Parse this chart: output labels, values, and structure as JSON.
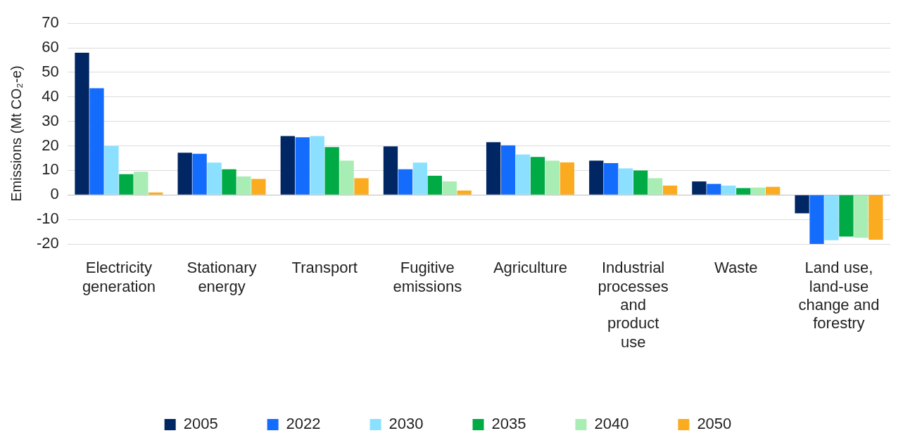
{
  "chart_data": {
    "type": "bar",
    "ylabel": "Emissions (Mt CO₂-e)",
    "categories": [
      "Electricity generation",
      "Stationary energy",
      "Transport",
      "Fugitive emissions",
      "Agriculture",
      "Industrial processes and product use",
      "Waste",
      "Land use, land-use change and forestry"
    ],
    "series": [
      {
        "name": "2005",
        "color": "#002664",
        "values": [
          58,
          17.2,
          24,
          19.8,
          21.5,
          14,
          5.5,
          -7.5
        ]
      },
      {
        "name": "2022",
        "color": "#146cfd",
        "values": [
          43.5,
          16.8,
          23.5,
          10.5,
          20.2,
          13,
          4.5,
          -20
        ]
      },
      {
        "name": "2030",
        "color": "#8ce0ff",
        "values": [
          20,
          13.2,
          24,
          13.2,
          16.5,
          10.8,
          3.8,
          -18.5
        ]
      },
      {
        "name": "2035",
        "color": "#00aa45",
        "values": [
          8.5,
          10.5,
          19.5,
          7.8,
          15.5,
          10,
          2.8,
          -17
        ]
      },
      {
        "name": "2040",
        "color": "#a8edb3",
        "values": [
          9.5,
          7.5,
          14,
          5.5,
          14,
          6.8,
          3,
          -17.5
        ]
      },
      {
        "name": "2050",
        "color": "#fbab1f",
        "values": [
          1,
          6.5,
          6.8,
          1.8,
          13.3,
          3.8,
          3.3,
          -18.3
        ]
      }
    ],
    "ylim": [
      -20,
      70
    ],
    "yticks": [
      -20,
      -10,
      0,
      10,
      20,
      30,
      40,
      50,
      60,
      70
    ],
    "grid": "y",
    "legend": "bottom"
  }
}
